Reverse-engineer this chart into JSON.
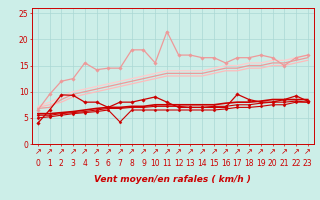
{
  "bg_color": "#cceee8",
  "grid_color": "#aad8d4",
  "xlabel": "Vent moyen/en rafales ( km/h )",
  "xlabel_color": "#cc0000",
  "xlabel_fontsize": 6.5,
  "tick_color": "#cc0000",
  "tick_fontsize": 5.5,
  "ylim": [
    0,
    26
  ],
  "yticks": [
    0,
    5,
    10,
    15,
    20,
    25
  ],
  "xlim": [
    -0.5,
    23.5
  ],
  "xticks": [
    0,
    1,
    2,
    3,
    4,
    5,
    6,
    7,
    8,
    9,
    10,
    11,
    12,
    13,
    14,
    15,
    16,
    17,
    18,
    19,
    20,
    21,
    22,
    23
  ],
  "lines": [
    {
      "y": [
        4.0,
        6.5,
        9.4,
        9.3,
        8.0,
        8.0,
        7.0,
        8.0,
        8.0,
        8.5,
        9.0,
        8.0,
        7.0,
        7.0,
        7.0,
        7.0,
        7.0,
        9.5,
        8.5,
        8.0,
        8.0,
        8.5,
        9.2,
        8.2
      ],
      "color": "#cc0000",
      "lw": 0.9,
      "marker": "D",
      "ms": 1.8,
      "zorder": 5
    },
    {
      "y": [
        5.0,
        5.2,
        5.5,
        5.8,
        6.0,
        6.2,
        6.5,
        4.2,
        6.5,
        6.5,
        6.5,
        6.5,
        6.5,
        6.5,
        6.5,
        6.5,
        6.7,
        7.0,
        7.0,
        7.2,
        7.5,
        7.5,
        8.0,
        8.0
      ],
      "color": "#cc0000",
      "lw": 0.8,
      "marker": "D",
      "ms": 1.5,
      "zorder": 4
    },
    {
      "y": [
        5.5,
        5.5,
        5.8,
        6.0,
        6.2,
        6.5,
        6.8,
        6.8,
        7.0,
        7.0,
        7.2,
        7.2,
        7.2,
        7.0,
        7.0,
        7.2,
        7.2,
        7.5,
        7.5,
        7.8,
        8.0,
        8.0,
        8.2,
        8.0
      ],
      "color": "#cc0000",
      "lw": 0.8,
      "marker": "D",
      "ms": 1.5,
      "zorder": 4
    },
    {
      "y": [
        5.8,
        5.8,
        6.0,
        6.2,
        6.5,
        6.8,
        7.0,
        7.0,
        7.2,
        7.2,
        7.5,
        7.5,
        7.5,
        7.5,
        7.5,
        7.5,
        7.8,
        8.0,
        8.0,
        8.2,
        8.5,
        8.5,
        8.5,
        8.5
      ],
      "color": "#cc0000",
      "lw": 1.2,
      "marker": null,
      "ms": 0,
      "zorder": 3
    },
    {
      "y": [
        6.5,
        9.5,
        12.0,
        12.5,
        15.5,
        14.2,
        14.5,
        14.5,
        18.0,
        18.0,
        15.5,
        21.5,
        17.0,
        17.0,
        16.5,
        16.5,
        15.5,
        16.5,
        16.5,
        17.0,
        16.5,
        15.0,
        16.5,
        17.0
      ],
      "color": "#ee9999",
      "lw": 0.9,
      "marker": "D",
      "ms": 1.8,
      "zorder": 6
    },
    {
      "y": [
        6.8,
        7.0,
        8.5,
        9.5,
        10.0,
        10.5,
        11.0,
        11.5,
        12.0,
        12.5,
        13.0,
        13.5,
        13.5,
        13.5,
        13.5,
        14.0,
        14.5,
        14.5,
        15.0,
        15.0,
        15.5,
        15.5,
        16.0,
        16.5
      ],
      "color": "#ee9999",
      "lw": 0.9,
      "marker": null,
      "ms": 0,
      "zorder": 2
    },
    {
      "y": [
        7.0,
        7.5,
        8.0,
        9.0,
        9.5,
        10.0,
        10.5,
        11.0,
        11.5,
        12.0,
        12.5,
        13.0,
        13.0,
        13.0,
        13.0,
        13.5,
        14.0,
        14.0,
        14.5,
        14.5,
        15.0,
        15.0,
        15.5,
        16.0
      ],
      "color": "#ffbbbb",
      "lw": 0.9,
      "marker": null,
      "ms": 0,
      "zorder": 2
    },
    {
      "y": [
        7.2,
        8.0,
        9.0,
        10.0,
        10.5,
        11.0,
        11.5,
        12.0,
        12.5,
        13.0,
        13.5,
        14.0,
        14.0,
        14.0,
        14.0,
        14.5,
        15.0,
        15.0,
        15.5,
        15.5,
        16.0,
        16.0,
        16.5,
        17.0
      ],
      "color": "#ffcccc",
      "lw": 0.9,
      "marker": null,
      "ms": 0,
      "zorder": 2
    }
  ],
  "spine_color": "#cc0000"
}
